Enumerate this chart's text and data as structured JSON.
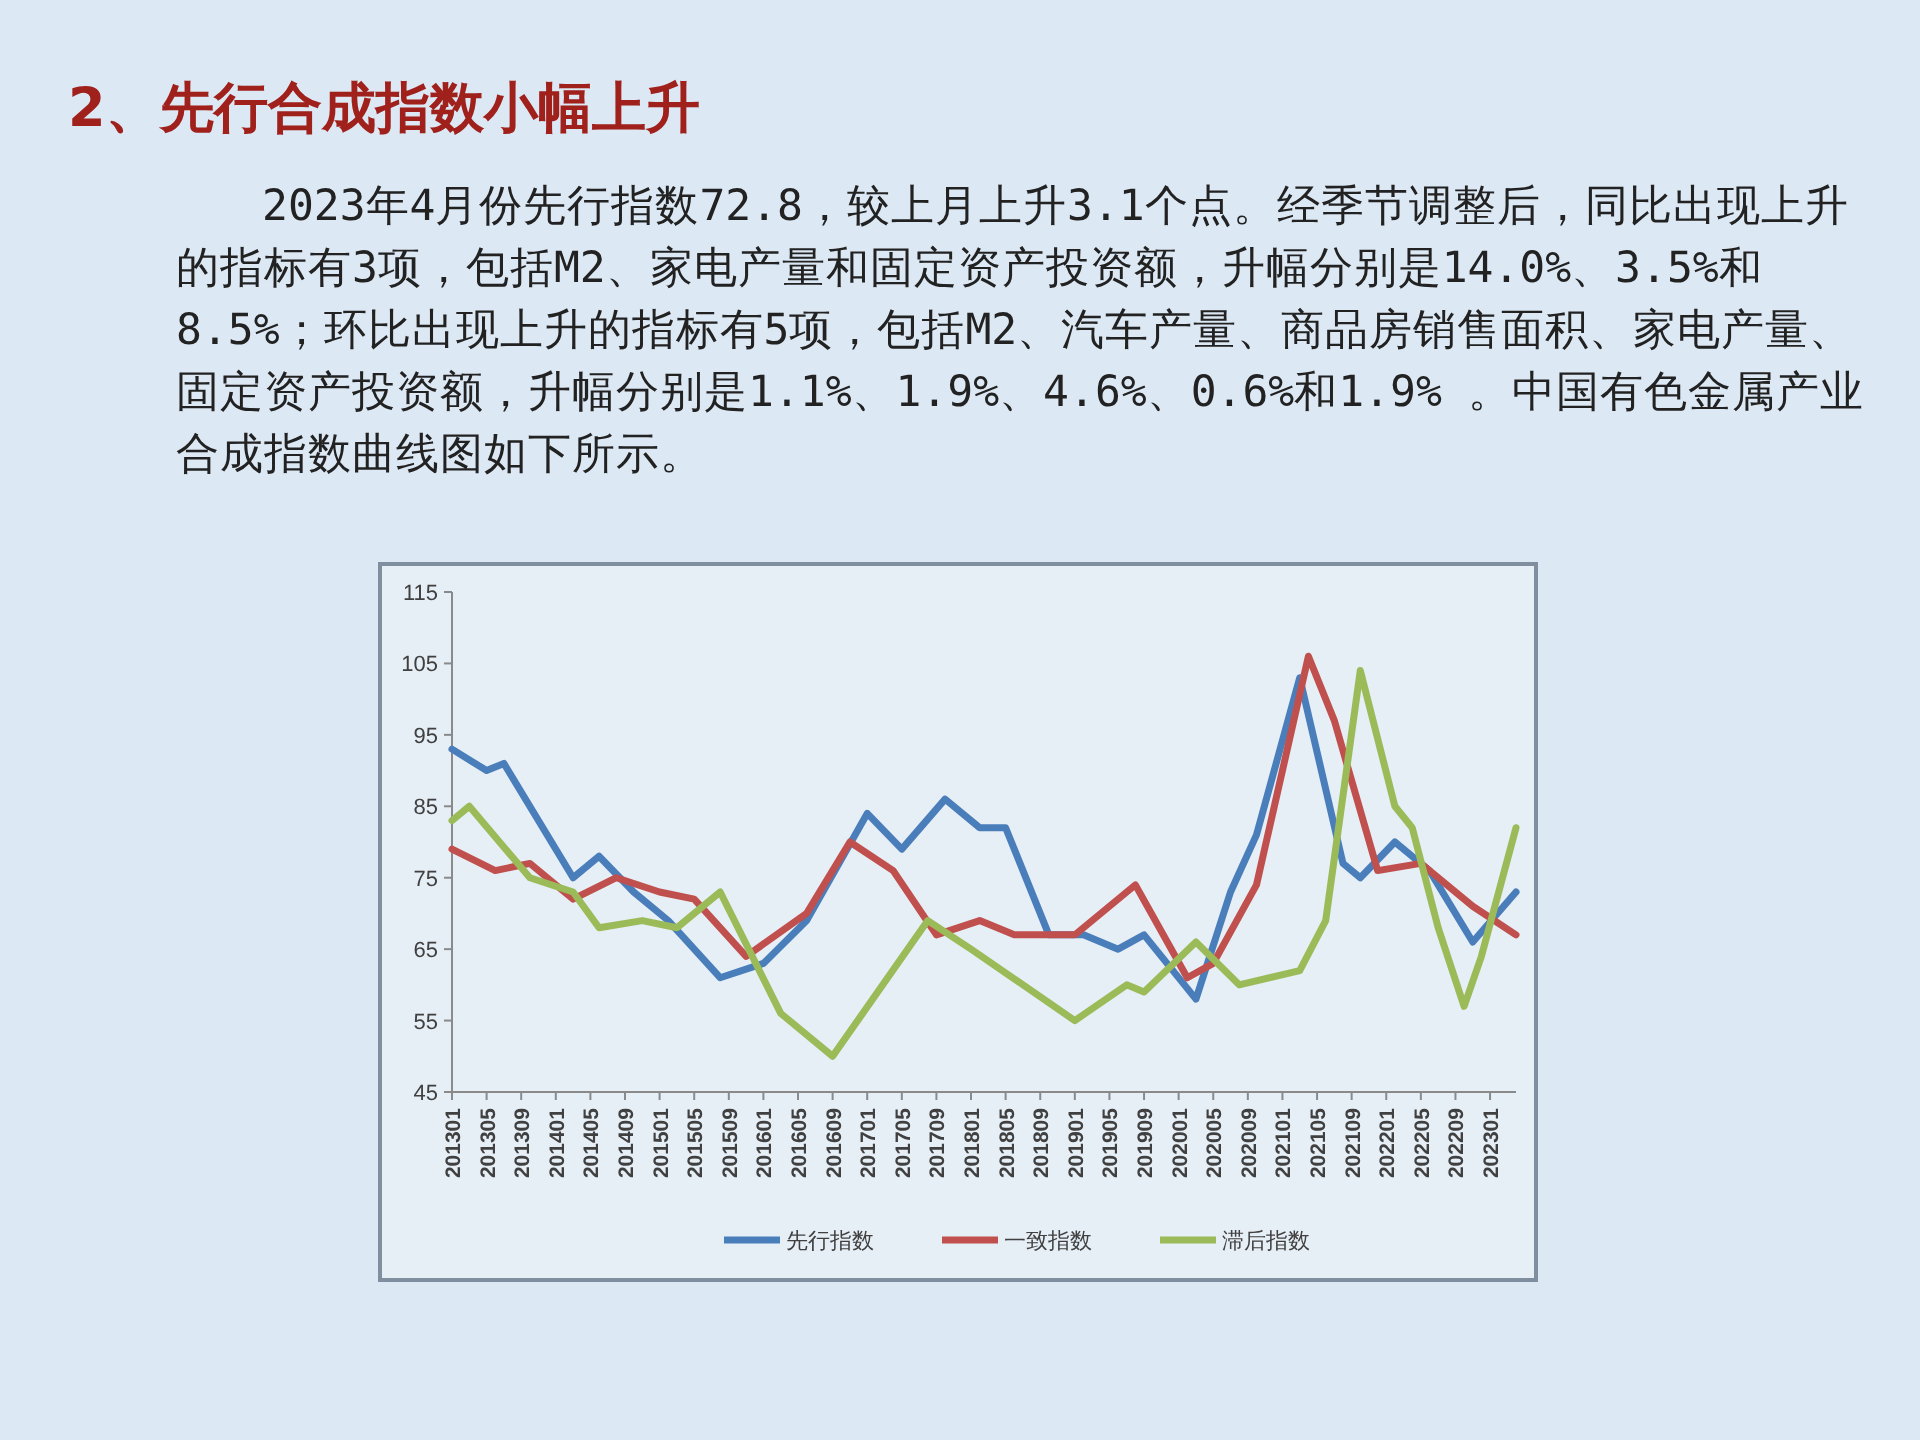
{
  "chart_data": {
    "type": "line",
    "title": "2、先行合成指数小幅上升",
    "subtitle": "2023年4月份先行指数72.8，较上月上升3.1个点。经季节调整后，同比出现上升的指标有3项，包括M2、家电产量和固定资产投资额，升幅分别是14.0%、3.5%和8.5%；环比出现上升的指标有5项，包括M2、汽车产量、商品房销售面积、家电产量、固定资产投资额，升幅分别是1.1%、1.9%、4.6%、0.6%和1.9% 。中国有色金属产业合成指数曲线图如下所示。",
    "xlim": [
      "2013-01",
      "2023-04"
    ],
    "xticks": [
      {
        "value": "2013-01",
        "label": "201301"
      },
      {
        "value": "2013-05",
        "label": "201305"
      },
      {
        "value": "2013-09",
        "label": "201309"
      },
      {
        "value": "2014-01",
        "label": "201401"
      },
      {
        "value": "2014-05",
        "label": "201405"
      },
      {
        "value": "2014-09",
        "label": "201409"
      },
      {
        "value": "2015-01",
        "label": "201501"
      },
      {
        "value": "2015-05",
        "label": "201505"
      },
      {
        "value": "2015-09",
        "label": "201509"
      },
      {
        "value": "2016-01",
        "label": "201601"
      },
      {
        "value": "2016-05",
        "label": "201605"
      },
      {
        "value": "2016-09",
        "label": "201609"
      },
      {
        "value": "2017-01",
        "label": "201701"
      },
      {
        "value": "2017-05",
        "label": "201705"
      },
      {
        "value": "2017-09",
        "label": "201709"
      },
      {
        "value": "2018-01",
        "label": "201801"
      },
      {
        "value": "2018-05",
        "label": "201805"
      },
      {
        "value": "2018-09",
        "label": "201809"
      },
      {
        "value": "2019-01",
        "label": "201901"
      },
      {
        "value": "2019-05",
        "label": "201905"
      },
      {
        "value": "2019-09",
        "label": "201909"
      },
      {
        "value": "2020-01",
        "label": "202001"
      },
      {
        "value": "2020-05",
        "label": "202005"
      },
      {
        "value": "2020-09",
        "label": "202009"
      },
      {
        "value": "2021-01",
        "label": "202101"
      },
      {
        "value": "2021-05",
        "label": "202105"
      },
      {
        "value": "2021-09",
        "label": "202109"
      },
      {
        "value": "2022-01",
        "label": "202201"
      },
      {
        "value": "2022-05",
        "label": "202205"
      },
      {
        "value": "2022-09",
        "label": "202209"
      },
      {
        "value": "2023-01",
        "label": "202301"
      }
    ],
    "ylim": [
      45,
      115
    ],
    "yticks": [
      45,
      55,
      65,
      75,
      85,
      95,
      105,
      115
    ],
    "legend": "bottom",
    "series": [
      {
        "name": "先行指数",
        "color": "#4a7ebb",
        "x": [
          "2013-01",
          "2013-05",
          "2013-07",
          "2014-03",
          "2014-06",
          "2014-10",
          "2015-02",
          "2015-08",
          "2016-01",
          "2016-06",
          "2017-01",
          "2017-05",
          "2017-10",
          "2018-02",
          "2018-05",
          "2018-10",
          "2019-02",
          "2019-06",
          "2019-09",
          "2020-03",
          "2020-07",
          "2020-10",
          "2021-03",
          "2021-08",
          "2021-10",
          "2022-02",
          "2022-06",
          "2022-11",
          "2023-04"
        ],
        "values": [
          93,
          90,
          91,
          75,
          78,
          73,
          69,
          61,
          63,
          69,
          84,
          79,
          86,
          82,
          82,
          67,
          67,
          65,
          67,
          58,
          73,
          81,
          103,
          77,
          75,
          80,
          76,
          66,
          73
        ]
      },
      {
        "name": "一致指数",
        "color": "#c0504d",
        "x": [
          "2013-01",
          "2013-06",
          "2013-10",
          "2014-03",
          "2014-08",
          "2015-01",
          "2015-05",
          "2015-11",
          "2016-06",
          "2016-11",
          "2017-04",
          "2017-09",
          "2018-02",
          "2018-06",
          "2019-01",
          "2019-08",
          "2020-02",
          "2020-05",
          "2020-10",
          "2021-04",
          "2021-07",
          "2021-12",
          "2022-05",
          "2022-11",
          "2023-04"
        ],
        "values": [
          79,
          76,
          77,
          72,
          75,
          73,
          72,
          64,
          70,
          80,
          76,
          67,
          69,
          67,
          67,
          74,
          61,
          63,
          74,
          106,
          97,
          76,
          77,
          71,
          67
        ]
      },
      {
        "name": "滞后指数",
        "color": "#9bbb59",
        "x": [
          "2013-01",
          "2013-03",
          "2013-10",
          "2014-03",
          "2014-06",
          "2014-11",
          "2015-03",
          "2015-08",
          "2016-03",
          "2016-09",
          "2017-08",
          "2018-01",
          "2019-01",
          "2019-07",
          "2019-09",
          "2020-03",
          "2020-08",
          "2021-03",
          "2021-06",
          "2021-10",
          "2022-02",
          "2022-04",
          "2022-07",
          "2022-10",
          "2022-12",
          "2023-04"
        ],
        "values": [
          83,
          85,
          75,
          73,
          68,
          69,
          68,
          73,
          56,
          50,
          69,
          65,
          55,
          60,
          59,
          66,
          60,
          62,
          69,
          104,
          85,
          82,
          68,
          57,
          64,
          82
        ]
      }
    ]
  }
}
